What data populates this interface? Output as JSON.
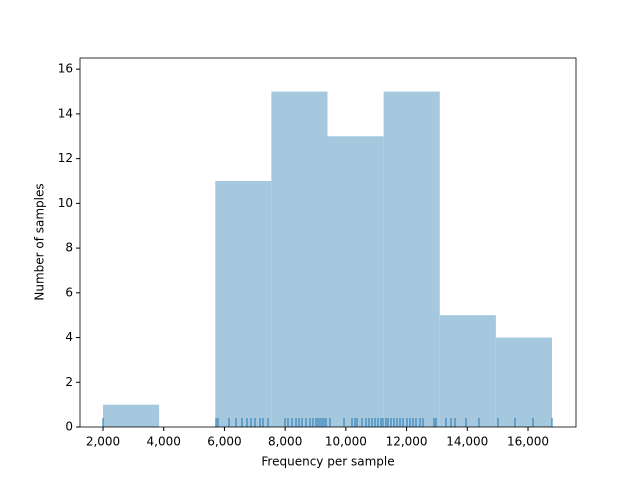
{
  "chart_data": {
    "type": "histogram",
    "xlabel": "Frequency per sample",
    "ylabel": "Number of samples",
    "bins": [
      2000,
      3849,
      5698,
      7546,
      9395,
      11244,
      13093,
      14941,
      16790
    ],
    "values": [
      1,
      0,
      11,
      15,
      13,
      15,
      5,
      4
    ],
    "color": "#a6c8df",
    "rug": [
      2000,
      5722,
      5788,
      6150,
      6381,
      6578,
      6743,
      6875,
      7007,
      7172,
      7270,
      7435,
      7995,
      8094,
      8225,
      8357,
      8456,
      8555,
      8687,
      8819,
      8917,
      9016,
      9082,
      9148,
      9214,
      9280,
      9346,
      9477,
      9939,
      10202,
      10301,
      10367,
      10532,
      10663,
      10762,
      10861,
      10960,
      11059,
      11157,
      11223,
      11322,
      11388,
      11487,
      11585,
      11684,
      11783,
      11882,
      12014,
      12113,
      12211,
      12310,
      12442,
      12541,
      12903,
      12969,
      13298,
      13463,
      13595,
      13957,
      14385,
      15011,
      15571,
      16164,
      16790
    ],
    "rug_color": "#1f77b4",
    "xlim": [
      1242,
      17581
    ],
    "ylim": [
      0,
      16.5
    ],
    "xticks": [
      {
        "value": 2000,
        "label": "2,000"
      },
      {
        "value": 4000,
        "label": "4,000"
      },
      {
        "value": 6000,
        "label": "6,000"
      },
      {
        "value": 8000,
        "label": "8,000"
      },
      {
        "value": 10000,
        "label": "10,000"
      },
      {
        "value": 12000,
        "label": "12,000"
      },
      {
        "value": 14000,
        "label": "14,000"
      },
      {
        "value": 16000,
        "label": "16,000"
      }
    ],
    "yticks": [
      0,
      2,
      4,
      6,
      8,
      10,
      12,
      14,
      16
    ]
  }
}
